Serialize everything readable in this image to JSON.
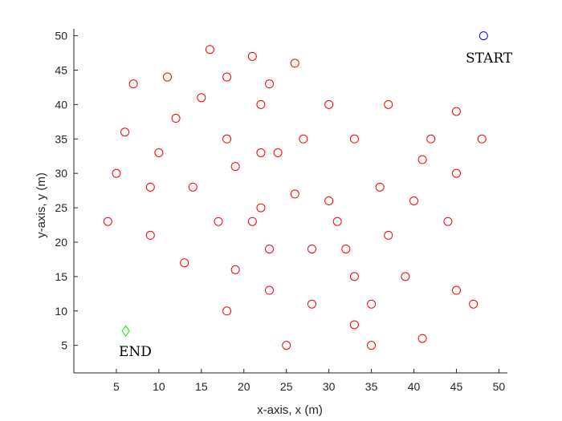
{
  "chart_data": {
    "type": "scatter",
    "xlabel": "x-axis, x (m)",
    "ylabel": "y-axis, y (m)",
    "xlim": [
      0,
      51
    ],
    "ylim": [
      1,
      51
    ],
    "xticks": [
      5,
      10,
      15,
      20,
      25,
      30,
      35,
      40,
      45,
      50
    ],
    "yticks": [
      5,
      10,
      15,
      20,
      25,
      30,
      35,
      40,
      45,
      50
    ],
    "grid": false,
    "legend": "none",
    "series": [
      {
        "marker": "circle",
        "color": "#ff0000",
        "points": [
          [
            16,
            48
          ],
          [
            21,
            47
          ],
          [
            26,
            46
          ],
          [
            7,
            43
          ],
          [
            11,
            44
          ],
          [
            18,
            44
          ],
          [
            23,
            43
          ],
          [
            15,
            41
          ],
          [
            22,
            40
          ],
          [
            30,
            40
          ],
          [
            37,
            40
          ],
          [
            45,
            39
          ],
          [
            12,
            38
          ],
          [
            6,
            36
          ],
          [
            18,
            35
          ],
          [
            27,
            35
          ],
          [
            33,
            35
          ],
          [
            42,
            35
          ],
          [
            48,
            35
          ],
          [
            10,
            33
          ],
          [
            22,
            33
          ],
          [
            24,
            33
          ],
          [
            41,
            32
          ],
          [
            19,
            31
          ],
          [
            5,
            30
          ],
          [
            45,
            30
          ],
          [
            9,
            28
          ],
          [
            14,
            28
          ],
          [
            36,
            28
          ],
          [
            26,
            27
          ],
          [
            30,
            26
          ],
          [
            40,
            26
          ],
          [
            22,
            25
          ],
          [
            4,
            23
          ],
          [
            17,
            23
          ],
          [
            21,
            23
          ],
          [
            31,
            23
          ],
          [
            44,
            23
          ],
          [
            9,
            21
          ],
          [
            37,
            21
          ],
          [
            23,
            19
          ],
          [
            28,
            19
          ],
          [
            32,
            19
          ],
          [
            13,
            17
          ],
          [
            19,
            16
          ],
          [
            33,
            15
          ],
          [
            39,
            15
          ],
          [
            23,
            13
          ],
          [
            45,
            13
          ],
          [
            28,
            11
          ],
          [
            35,
            11
          ],
          [
            47,
            11
          ],
          [
            18,
            10
          ],
          [
            33,
            8
          ],
          [
            41,
            6
          ],
          [
            25,
            5
          ],
          [
            35,
            5
          ]
        ]
      },
      {
        "marker": "circle",
        "color": "#0000ff",
        "points": [
          [
            48.2,
            50
          ]
        ]
      },
      {
        "marker": "diamond",
        "color": "#00ff00",
        "points": [
          [
            6.1,
            7.1
          ]
        ]
      }
    ],
    "annotations": [
      {
        "text": "START",
        "x": 48.2,
        "y": 50
      },
      {
        "text": "END",
        "x": 6.1,
        "y": 7.1
      }
    ]
  }
}
